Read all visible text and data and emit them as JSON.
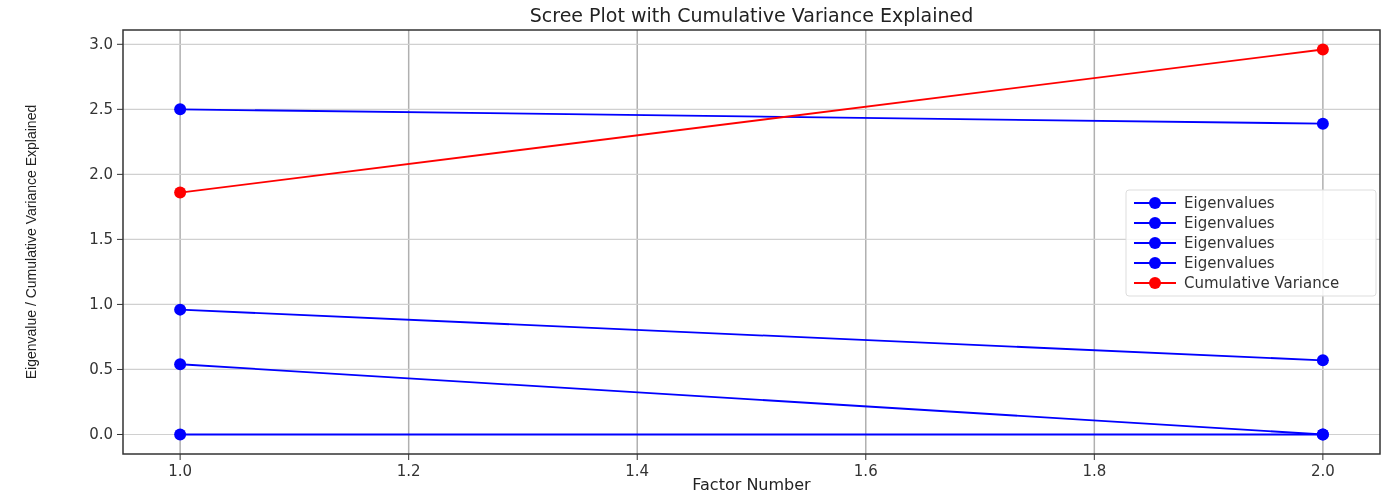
{
  "chart_data": {
    "type": "line",
    "title": "Scree Plot with Cumulative Variance Explained",
    "xlabel": "Factor Number",
    "ylabel": "Eigenvalue / Cumulative Variance Explained",
    "x": [
      1,
      2
    ],
    "series": [
      {
        "name": "Eigenvalues",
        "color": "#0000ff",
        "values": [
          2.5,
          2.39
        ]
      },
      {
        "name": "Eigenvalues",
        "color": "#0000ff",
        "values": [
          0.96,
          0.57
        ]
      },
      {
        "name": "Eigenvalues",
        "color": "#0000ff",
        "values": [
          0.54,
          0
        ]
      },
      {
        "name": "Eigenvalues",
        "color": "#0000ff",
        "values": [
          0,
          0
        ]
      },
      {
        "name": "Cumulative Variance",
        "color": "#ff0000",
        "values": [
          1.86,
          2.96
        ]
      }
    ],
    "xlim": [
      0.95,
      2.05
    ],
    "xticks": [
      {
        "value": 1,
        "label": "1.0"
      },
      1.2,
      1.4,
      1.6,
      1.8,
      {
        "value": 2,
        "label": "2.0"
      }
    ],
    "ylim": [
      -0.15,
      3.11
    ],
    "yticks": [
      {
        "value": 0,
        "label": "0.0"
      },
      0.5,
      {
        "value": 1,
        "label": "1.0"
      },
      1.5,
      {
        "value": 2,
        "label": "2.0"
      },
      2.5,
      {
        "value": 3,
        "label": "3.0"
      }
    ],
    "grid": true,
    "legend": "right",
    "marker": "circle",
    "line_style": "solid"
  }
}
